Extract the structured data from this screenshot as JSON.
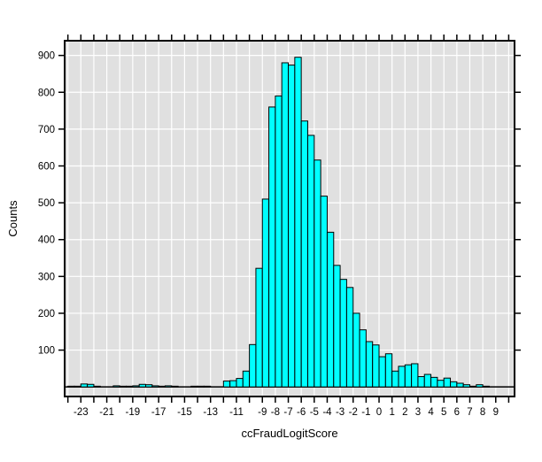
{
  "figure": {
    "xlabel": "ccFraudLogitScore",
    "ylabel": "Counts"
  },
  "chart_data": {
    "type": "histogram",
    "title": "",
    "xlabel": "ccFraudLogitScore",
    "ylabel": "Counts",
    "legend": "none",
    "grid": "on",
    "colors": {
      "bar_fill": "#00FFFF",
      "bar_edge": "#000000",
      "panel_bg": "#E0E0E0",
      "grid_line": "#FFFFFF",
      "axis_line": "#000000",
      "text": "#000000",
      "page_bg": "#FFFFFF"
    },
    "bin_width": 0.5,
    "bin_left_edges": [
      -24,
      -23.5,
      -23,
      -22.5,
      -22,
      -21.5,
      -21,
      -20.5,
      -20,
      -19.5,
      -19,
      -18.5,
      -18,
      -17.5,
      -17,
      -16.5,
      -16,
      -15.5,
      -15,
      -14.5,
      -14,
      -13.5,
      -13,
      -12.5,
      -12,
      -11.5,
      -11,
      -10.5,
      -10,
      -9.5,
      -9,
      -8.5,
      -8,
      -7.5,
      -7,
      -6.5,
      -6,
      -5.5,
      -5,
      -4.5,
      -4,
      -3.5,
      -3,
      -2.5,
      -2,
      -1.5,
      -1,
      -0.5,
      0,
      0.5,
      1,
      1.5,
      2,
      2.5,
      3,
      3.5,
      4,
      4.5,
      5,
      5.5,
      6,
      6.5,
      7,
      7.5,
      8
    ],
    "counts": [
      2,
      2,
      8,
      7,
      2,
      0,
      0,
      3,
      2,
      2,
      3,
      7,
      6,
      3,
      2,
      3,
      2,
      0,
      0,
      2,
      2,
      2,
      0,
      0,
      16,
      17,
      23,
      43,
      115,
      322,
      510,
      760,
      790,
      880,
      874,
      895,
      722,
      683,
      616,
      518,
      420,
      330,
      292,
      270,
      200,
      155,
      123,
      114,
      82,
      90,
      43,
      56,
      60,
      63,
      28,
      34,
      26,
      18,
      24,
      14,
      10,
      6,
      2,
      6,
      2
    ],
    "x_axis": {
      "min": -24.25,
      "max": 10.45,
      "tick_step": 1,
      "tick_min": -24,
      "tick_max": 10,
      "labeled_ticks": [
        -23,
        -21,
        -19,
        -17,
        -15,
        -13,
        -11,
        -9,
        -8,
        -7,
        -6,
        -5,
        -4,
        -3,
        -2,
        -1,
        0,
        1,
        2,
        3,
        4,
        5,
        6,
        7,
        8,
        9
      ]
    },
    "y_axis": {
      "min": -26,
      "max": 940,
      "grid_step": 100,
      "labeled_ticks": [
        100,
        200,
        300,
        400,
        500,
        600,
        700,
        800,
        900
      ]
    }
  }
}
